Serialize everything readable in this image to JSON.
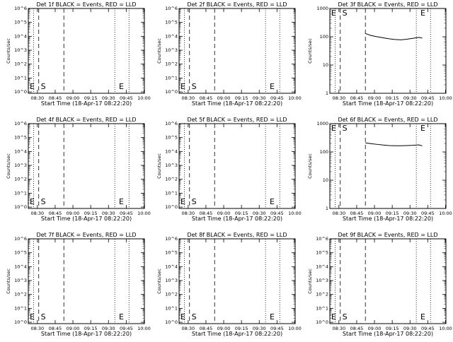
{
  "title_template": "Det {det} BLACK = Events, RED = LLD",
  "xlabel": "Start Time (18-Apr-17 08:22:20)",
  "ylabel": "Counts/sec",
  "marker_E": "E",
  "marker_S": "S",
  "chart_data": [
    {
      "type": "line",
      "det": "1f",
      "ylim": [
        0.8,
        1000000
      ],
      "yscale": "log",
      "yticks": [
        "10^0",
        "10^1",
        "10^2",
        "10^3",
        "10^4",
        "10^5",
        "10^6"
      ],
      "xticks": [
        "08:30",
        "08:45",
        "09:00",
        "09:15",
        "09:30",
        "09:45",
        "10:00"
      ],
      "series": []
    },
    {
      "type": "line",
      "det": "2f",
      "ylim": [
        0.8,
        1000000
      ],
      "yscale": "log",
      "yticks": [
        "10^0",
        "10^1",
        "10^2",
        "10^3",
        "10^4",
        "10^5",
        "10^6"
      ],
      "xticks": [
        "08:30",
        "08:45",
        "09:00",
        "09:15",
        "09:30",
        "09:45",
        "10:00"
      ],
      "series": []
    },
    {
      "type": "line",
      "det": "3f",
      "ylim": [
        1,
        1000
      ],
      "yscale": "log",
      "yticks": [
        "1",
        "10",
        "100",
        "1000"
      ],
      "xticks": [
        "08:30",
        "08:45",
        "09:00",
        "09:15",
        "09:30",
        "09:45",
        "10:00"
      ],
      "series": [
        {
          "color": "#000000",
          "x": [
            0,
            5,
            10,
            15,
            20,
            25,
            30,
            35,
            40,
            45,
            48
          ],
          "y": [
            130,
            110,
            100,
            92,
            85,
            80,
            78,
            82,
            88,
            95,
            90
          ]
        }
      ]
    },
    {
      "type": "line",
      "det": "4f",
      "ylim": [
        0.8,
        1000000
      ],
      "yscale": "log",
      "yticks": [
        "10^0",
        "10^1",
        "10^2",
        "10^3",
        "10^4",
        "10^5",
        "10^6"
      ],
      "xticks": [
        "08:30",
        "08:45",
        "09:00",
        "09:15",
        "09:30",
        "09:45",
        "10:00"
      ],
      "series": []
    },
    {
      "type": "line",
      "det": "5f",
      "ylim": [
        0.8,
        1000000
      ],
      "yscale": "log",
      "yticks": [
        "10^0",
        "10^1",
        "10^2",
        "10^3",
        "10^4",
        "10^5",
        "10^6"
      ],
      "xticks": [
        "08:30",
        "08:45",
        "09:00",
        "09:15",
        "09:30",
        "09:45",
        "10:00"
      ],
      "series": []
    },
    {
      "type": "line",
      "det": "6f",
      "ylim": [
        1,
        1000
      ],
      "yscale": "log",
      "yticks": [
        "1",
        "10",
        "100",
        "1000"
      ],
      "xticks": [
        "08:30",
        "08:45",
        "09:00",
        "09:15",
        "09:30",
        "09:45",
        "10:00"
      ],
      "series": [
        {
          "color": "#000000",
          "x": [
            0,
            5,
            10,
            15,
            20,
            25,
            30,
            35,
            40,
            45,
            48
          ],
          "y": [
            210,
            195,
            185,
            175,
            168,
            165,
            165,
            168,
            172,
            178,
            165
          ]
        }
      ]
    },
    {
      "type": "line",
      "det": "7f",
      "ylim": [
        0.8,
        1000000
      ],
      "yscale": "log",
      "yticks": [
        "10^0",
        "10^1",
        "10^2",
        "10^3",
        "10^4",
        "10^5",
        "10^6"
      ],
      "xticks": [
        "08:30",
        "08:45",
        "09:00",
        "09:15",
        "09:30",
        "09:45",
        "10:00"
      ],
      "series": []
    },
    {
      "type": "line",
      "det": "8f",
      "ylim": [
        0.8,
        1000000
      ],
      "yscale": "log",
      "yticks": [
        "10^0",
        "10^1",
        "10^2",
        "10^3",
        "10^4",
        "10^5",
        "10^6"
      ],
      "xticks": [
        "08:30",
        "08:45",
        "09:00",
        "09:15",
        "09:30",
        "09:45",
        "10:00"
      ],
      "series": []
    },
    {
      "type": "line",
      "det": "9f",
      "ylim": [
        0.8,
        1000000
      ],
      "yscale": "log",
      "yticks": [
        "10^0",
        "10^1",
        "10^2",
        "10^3",
        "10^4",
        "10^5",
        "10^6"
      ],
      "xticks": [
        "08:30",
        "08:45",
        "09:00",
        "09:15",
        "09:30",
        "09:45",
        "10:00"
      ],
      "series": []
    }
  ]
}
